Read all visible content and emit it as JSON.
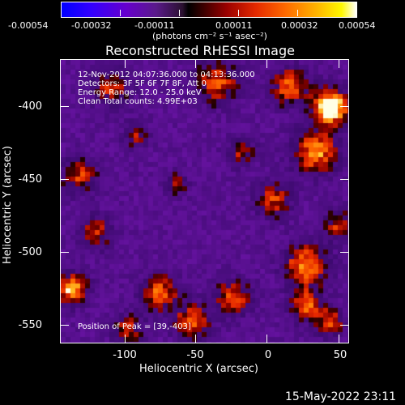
{
  "colorbar": {
    "tick_labels": [
      "-0.00054",
      "-0.00032",
      "-0.00011",
      "0.00011",
      "0.00032",
      "0.00054"
    ],
    "units": "(photons cm⁻² s⁻¹ asec⁻²)"
  },
  "title": "Reconstructed RHESSI Image",
  "info": {
    "time_range": "12-Nov-2012 04:07:36.000 to 04:13:36.000",
    "detectors": "Detectors: 3F 5F 6F 7F 8F, Att 0",
    "energy": "Energy Range: 12.0 - 25.0 keV",
    "clean": "Clean    Total counts: 4.99E+03",
    "peak": "Position of Peak = [39,-403]"
  },
  "axes": {
    "xlabel": "Heliocentric X (arcsec)",
    "ylabel": "Heliocentric Y (arcsec)",
    "xticks": [
      "-100",
      "-50",
      "0",
      "50"
    ],
    "yticks": [
      "-400",
      "-450",
      "-500",
      "-550"
    ],
    "x_range": [
      -141,
      55
    ],
    "y_range": [
      -370,
      -565
    ]
  },
  "timestamp": "15-May-2022 23:11"
}
